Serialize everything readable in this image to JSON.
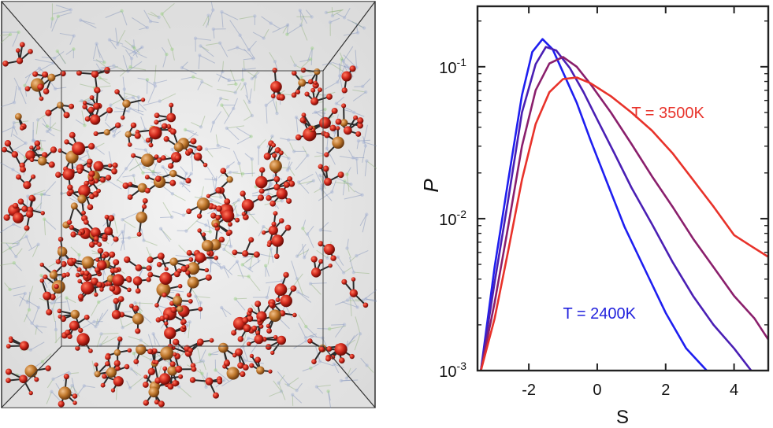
{
  "figure": {
    "left_panel": {
      "atom_colors": {
        "oxygen": "#d0281c",
        "silicon": "#c0782c",
        "network": "#7d8fb8",
        "bond": "#2a2a2a",
        "background": "#e9e9e9"
      }
    },
    "chart_data": {
      "type": "line",
      "xlabel": "S",
      "ylabel": "P",
      "xlim": [
        -3.5,
        5
      ],
      "ylim": [
        0.001,
        0.25
      ],
      "yscale": "log",
      "xticks": [
        -2,
        0,
        2,
        4
      ],
      "xtick_labels": [
        "-2",
        "0",
        "2",
        "4"
      ],
      "yticks": [
        0.001,
        0.01,
        0.1
      ],
      "ytick_labels": [
        {
          "base": "10",
          "exp": "-3"
        },
        {
          "base": "10",
          "exp": "-2"
        },
        {
          "base": "10",
          "exp": "-1"
        }
      ],
      "grid": false,
      "annotations": [
        {
          "text": "T = 3500K",
          "color": "#e8322a",
          "x": 1.0,
          "y": 0.046
        },
        {
          "text": "T = 2400K",
          "color": "#2222dd",
          "x": -1.0,
          "y": 0.0022
        }
      ],
      "series": [
        {
          "color": "#1e1ef0",
          "x": [
            -3.4,
            -3.0,
            -2.6,
            -2.2,
            -1.9,
            -1.6,
            -1.3,
            -1.0,
            -0.6,
            -0.2,
            0.3,
            0.8,
            1.4,
            2.0,
            2.6,
            3.2
          ],
          "y": [
            0.001,
            0.0048,
            0.018,
            0.065,
            0.125,
            0.152,
            0.13,
            0.092,
            0.058,
            0.033,
            0.017,
            0.0088,
            0.0046,
            0.0024,
            0.0014,
            0.001
          ]
        },
        {
          "color": "#4a1fb4",
          "x": [
            -3.4,
            -3.0,
            -2.6,
            -2.2,
            -1.8,
            -1.5,
            -1.2,
            -0.8,
            -0.4,
            0.0,
            0.5,
            1.0,
            1.6,
            2.2,
            2.8,
            3.4,
            4.0,
            4.5
          ],
          "y": [
            0.001,
            0.0038,
            0.0135,
            0.05,
            0.104,
            0.135,
            0.128,
            0.098,
            0.068,
            0.045,
            0.027,
            0.016,
            0.0092,
            0.0052,
            0.0031,
            0.002,
            0.0014,
            0.001
          ]
        },
        {
          "color": "#8a1f6c",
          "x": [
            -3.4,
            -3.0,
            -2.6,
            -2.2,
            -1.8,
            -1.4,
            -1.0,
            -0.6,
            -0.2,
            0.4,
            1.0,
            1.6,
            2.2,
            2.8,
            3.4,
            4.0,
            4.6,
            5.0
          ],
          "y": [
            0.001,
            0.0028,
            0.009,
            0.03,
            0.07,
            0.105,
            0.116,
            0.1,
            0.077,
            0.05,
            0.031,
            0.019,
            0.012,
            0.0074,
            0.0048,
            0.0031,
            0.0022,
            0.0016
          ]
        },
        {
          "color": "#e8322a",
          "x": [
            -3.4,
            -3.0,
            -2.6,
            -2.2,
            -1.8,
            -1.4,
            -1.0,
            -0.6,
            -0.2,
            0.4,
            1.0,
            1.6,
            2.2,
            2.8,
            3.4,
            4.0,
            4.5,
            5.0
          ],
          "y": [
            0.001,
            0.0022,
            0.0062,
            0.018,
            0.042,
            0.068,
            0.083,
            0.085,
            0.078,
            0.064,
            0.05,
            0.038,
            0.027,
            0.018,
            0.012,
            0.0078,
            0.0066,
            0.0056
          ]
        }
      ]
    }
  }
}
